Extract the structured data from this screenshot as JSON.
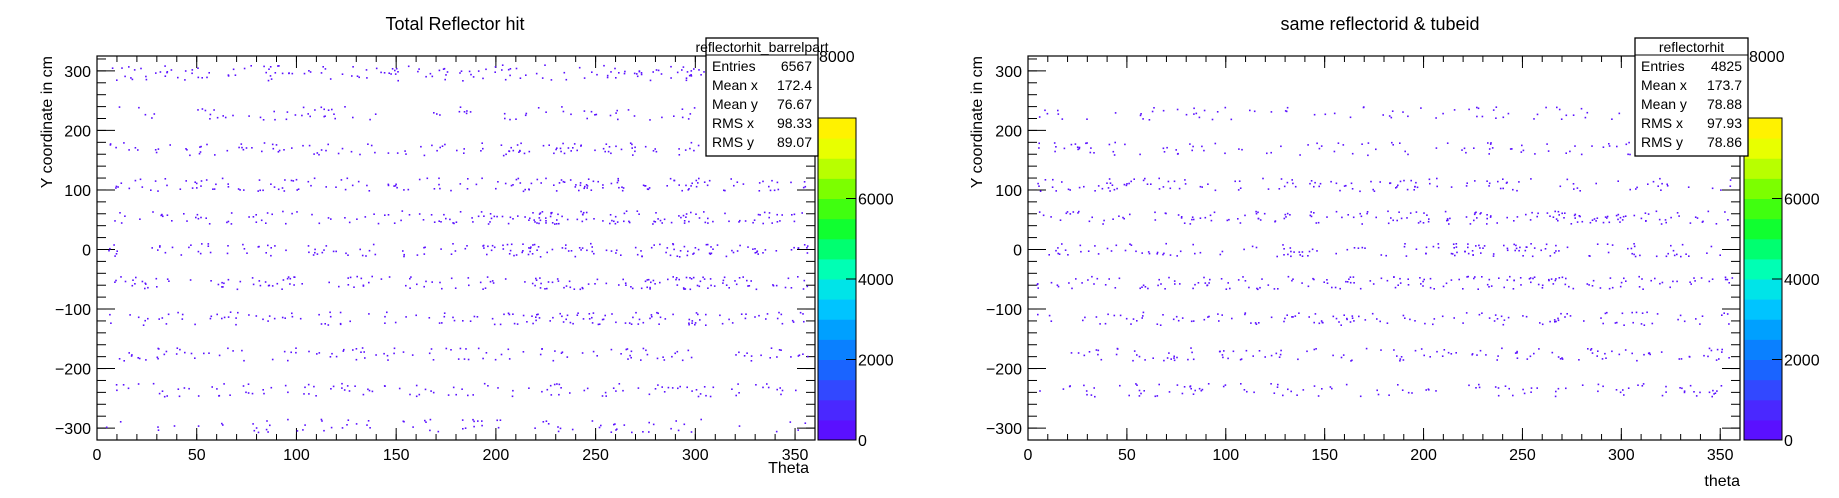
{
  "chart_data": [
    {
      "type": "scatter",
      "title": "Total Reflector hit",
      "xlabel": "Theta",
      "ylabel": "Y coordinate in cm",
      "xlim": [
        0,
        360
      ],
      "ylim": [
        -320,
        325
      ],
      "x_ticks": [
        0,
        50,
        100,
        150,
        200,
        250,
        300,
        350
      ],
      "y_ticks": [
        -300,
        -200,
        -100,
        0,
        100,
        200,
        300
      ],
      "z_ticks": [
        0,
        2000,
        4000,
        6000
      ],
      "z_visible_top": "8000",
      "marker_color": "#5a10ff",
      "grid": false,
      "row_y": [
        300,
        295,
        230,
        170,
        110,
        55,
        0,
        -55,
        -115,
        -175,
        -235,
        -295
      ],
      "row_weight": [
        0.7,
        0.5,
        0.6,
        0.75,
        1.0,
        1.0,
        1.0,
        1.0,
        0.9,
        0.85,
        0.8,
        0.6
      ],
      "stats": {
        "name": "reflectorhit_barrelpart",
        "rows": [
          {
            "label": "Entries",
            "value": "6567"
          },
          {
            "label": "Mean x",
            "value": "172.4"
          },
          {
            "label": "Mean y",
            "value": "76.67"
          },
          {
            "label": "RMS x",
            "value": "98.33"
          },
          {
            "label": "RMS y",
            "value": "89.07"
          }
        ]
      }
    },
    {
      "type": "scatter",
      "title": "same reflectorid & tubeid",
      "xlabel": "theta",
      "ylabel": "Y coordinate in cm",
      "xlim": [
        0,
        360
      ],
      "ylim": [
        -320,
        325
      ],
      "x_ticks": [
        0,
        50,
        100,
        150,
        200,
        250,
        300,
        350
      ],
      "y_ticks": [
        -300,
        -200,
        -100,
        0,
        100,
        200,
        300
      ],
      "z_ticks": [
        0,
        2000,
        4000,
        6000
      ],
      "z_visible_top": "8000",
      "marker_color": "#5a10ff",
      "grid": false,
      "row_y": [
        230,
        170,
        110,
        55,
        0,
        -55,
        -115,
        -175,
        -235
      ],
      "row_weight": [
        0.6,
        0.7,
        0.9,
        1.0,
        0.9,
        1.0,
        0.9,
        0.85,
        0.8
      ],
      "stats": {
        "name": "reflectorhit",
        "rows": [
          {
            "label": "Entries",
            "value": "4825"
          },
          {
            "label": "Mean x",
            "value": "173.7"
          },
          {
            "label": "Mean y",
            "value": "78.88"
          },
          {
            "label": "RMS x",
            "value": "97.93"
          },
          {
            "label": "RMS y",
            "value": "78.86"
          }
        ]
      }
    }
  ]
}
